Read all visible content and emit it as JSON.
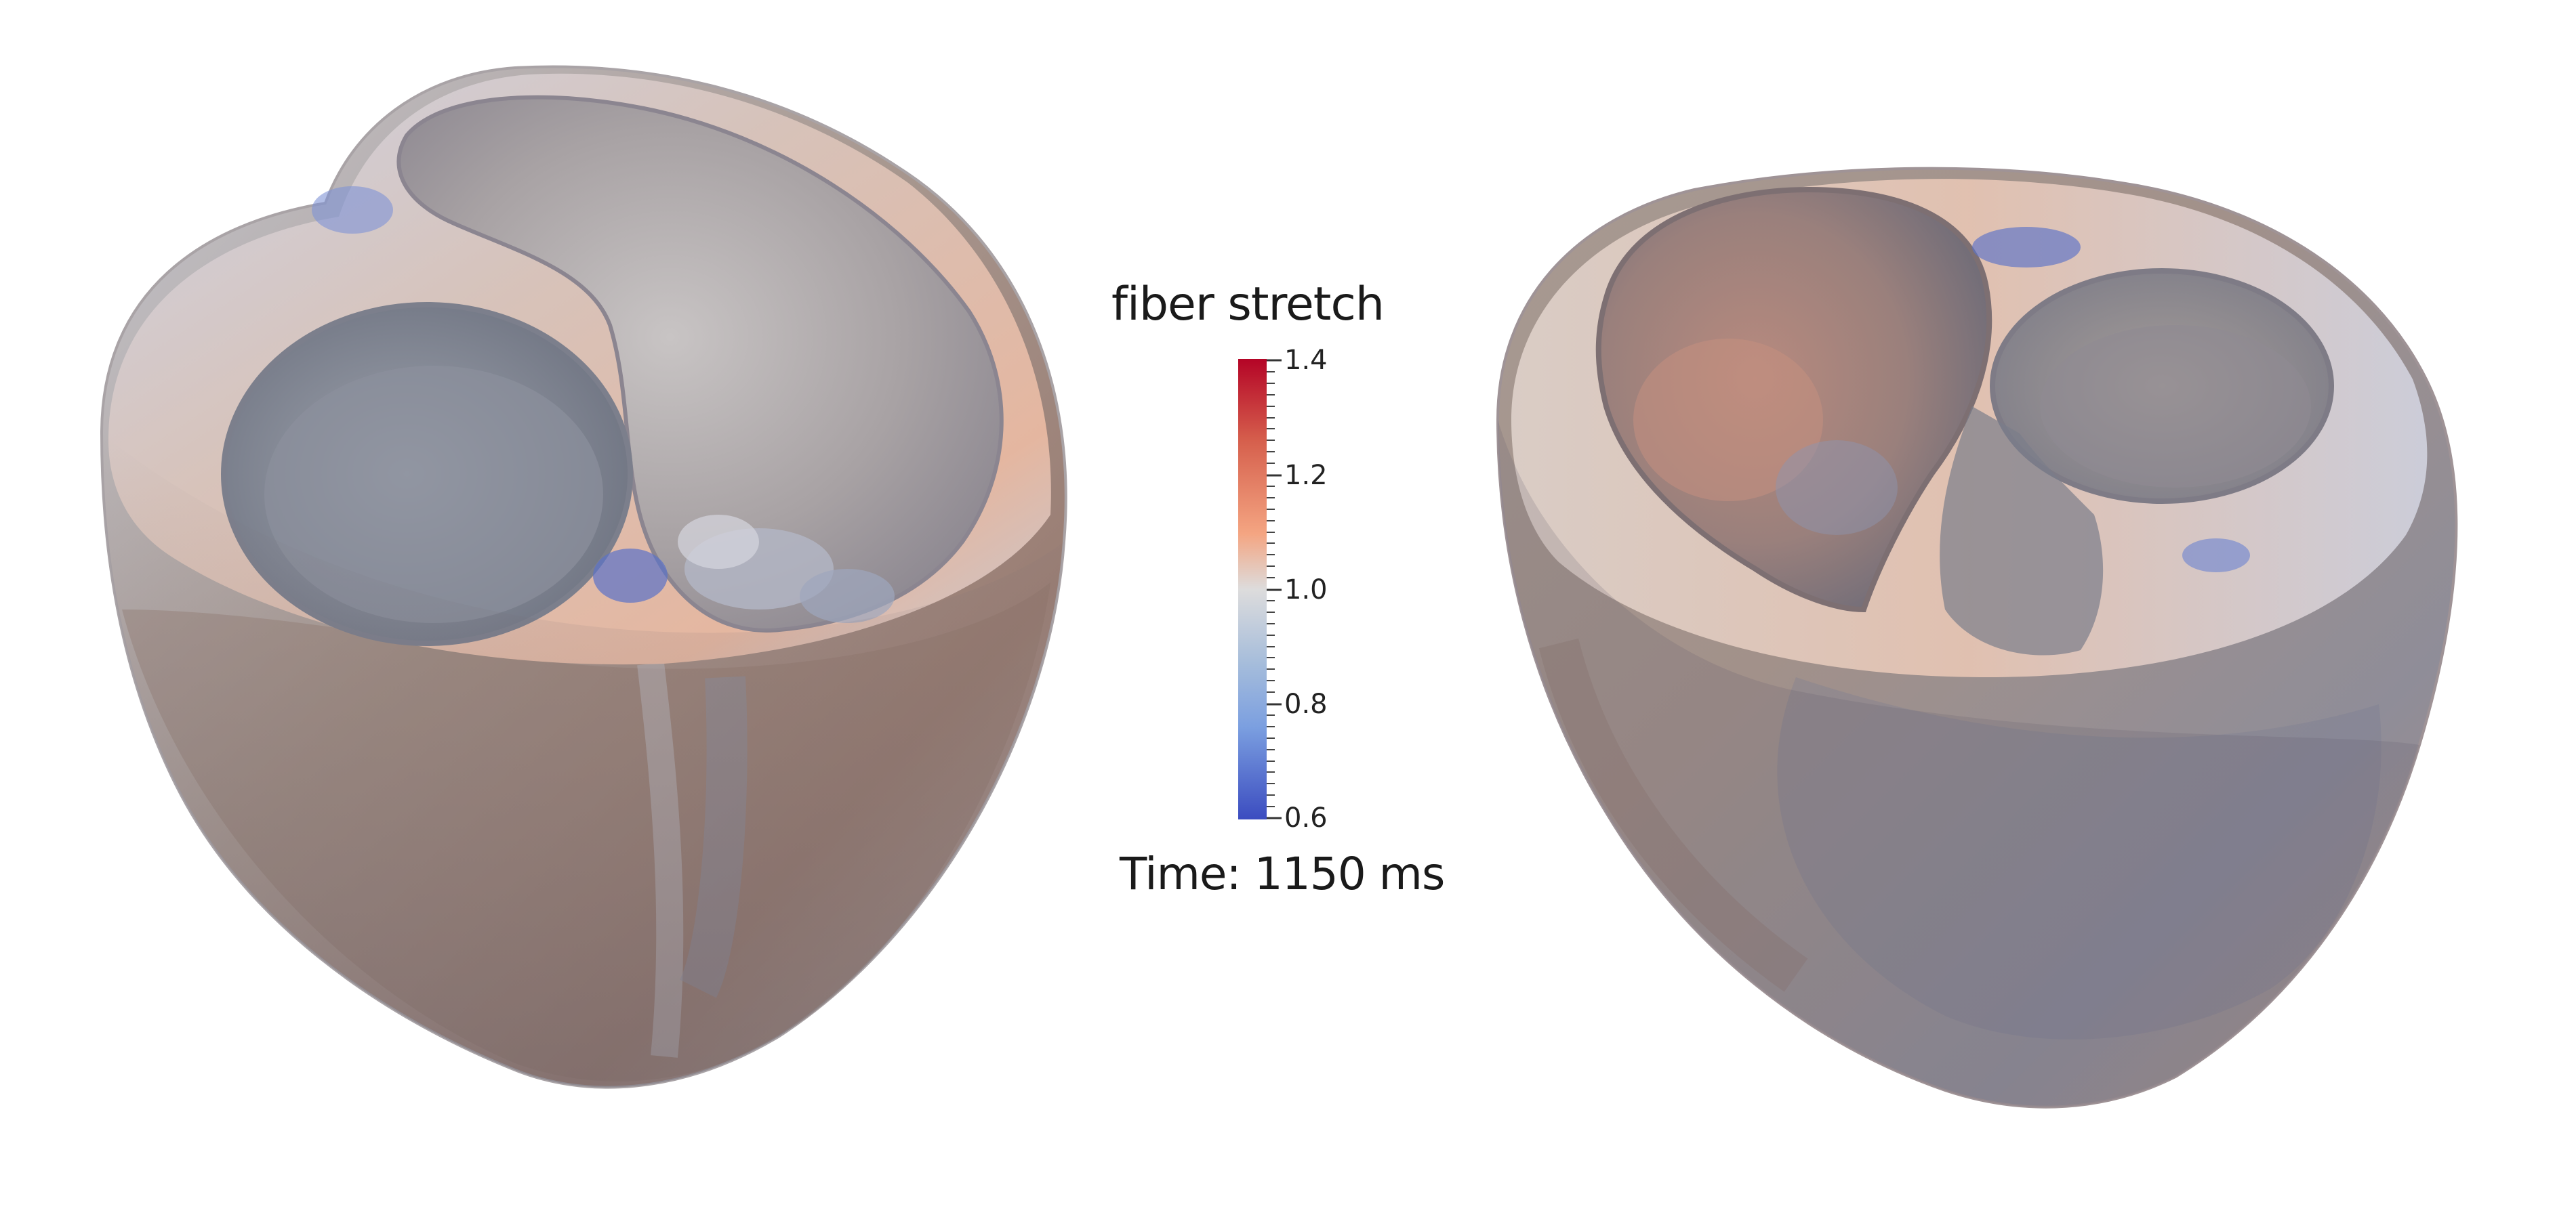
{
  "scalar_bar": {
    "title": "fiber stretch",
    "ticks": [
      "1.4",
      "1.2",
      "1.0",
      "0.8",
      "0.6"
    ],
    "range": [
      0.6,
      1.4
    ],
    "colormap": [
      "#3b4cc0",
      "#dddcdc",
      "#b40426"
    ]
  },
  "annotation": {
    "time_text": "Time: 1150 ms"
  },
  "views": [
    {
      "name": "left-heart-view",
      "icon": "heart-mesh-icon"
    },
    {
      "name": "right-heart-view",
      "icon": "heart-mesh-icon"
    }
  ]
}
